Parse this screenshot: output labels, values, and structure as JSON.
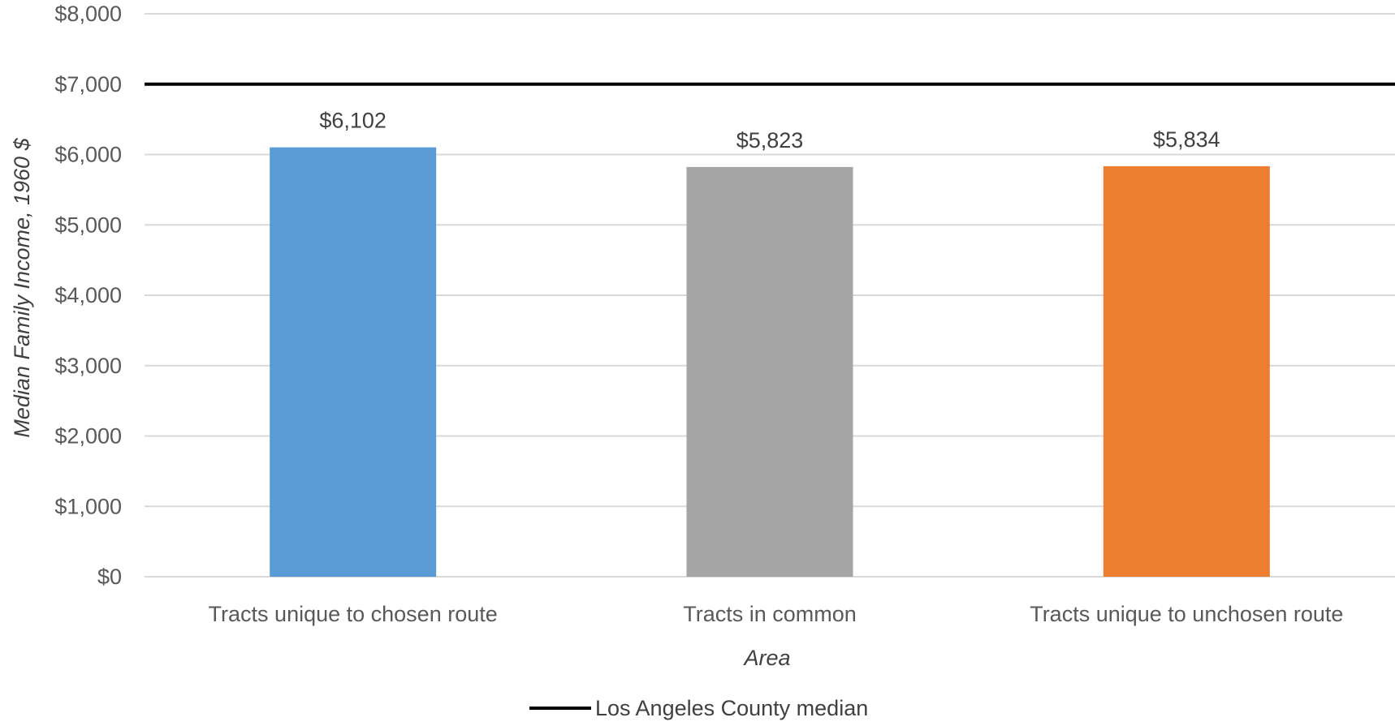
{
  "chart_data": {
    "type": "bar",
    "title": "",
    "xlabel": "Area",
    "ylabel": "Median Family Income, 1960 $",
    "categories": [
      "Tracts unique to chosen route",
      "Tracts in common",
      "Tracts unique to unchosen route"
    ],
    "values": [
      6102,
      5823,
      5834
    ],
    "data_labels": [
      "$6,102",
      "$5,823",
      "$5,834"
    ],
    "bar_colors": [
      "#5B9BD5",
      "#A5A5A5",
      "#ED7D31"
    ],
    "ylim": [
      0,
      8000
    ],
    "yticks": [
      0,
      1000,
      2000,
      3000,
      4000,
      5000,
      6000,
      7000,
      8000
    ],
    "ytick_labels": [
      "$0",
      "$1,000",
      "$2,000",
      "$3,000",
      "$4,000",
      "$5,000",
      "$6,000",
      "$7,000",
      "$8,000"
    ],
    "reference_line": {
      "name": "Los Angeles County median",
      "value": 7000,
      "color": "#000000"
    },
    "grid": true,
    "gridline_color": "#D9D9D9",
    "legend_placement": "bottom"
  }
}
